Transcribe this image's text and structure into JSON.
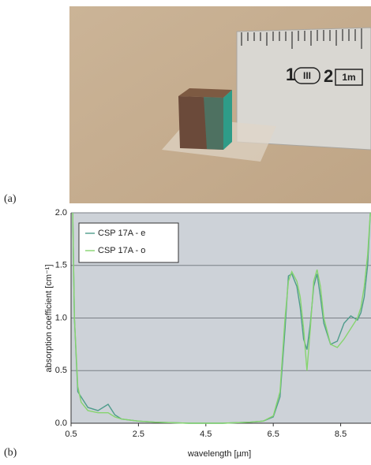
{
  "panel_a": {
    "label": "(a)",
    "ruler_texts": [
      "1",
      "III",
      "2",
      "1m"
    ]
  },
  "chart_data": {
    "type": "line",
    "label": "(b)",
    "x_label": "wavelength [µm]",
    "y_label": "absorption coefficient [cm⁻¹]",
    "x": [
      0.55,
      0.6,
      0.7,
      0.8,
      1.0,
      1.3,
      1.6,
      1.8,
      2.0,
      2.5,
      3.0,
      4.0,
      5.0,
      5.8,
      6.2,
      6.5,
      6.7,
      6.85,
      6.95,
      7.05,
      7.2,
      7.3,
      7.4,
      7.5,
      7.6,
      7.7,
      7.8,
      7.9,
      8.0,
      8.2,
      8.4,
      8.6,
      8.8,
      9.0,
      9.1,
      9.2,
      9.3,
      9.38
    ],
    "series": [
      {
        "name": "CSP 17A - e",
        "color": "#4f9c8c",
        "values": [
          2.0,
          1.0,
          0.3,
          0.25,
          0.15,
          0.12,
          0.18,
          0.08,
          0.04,
          0.02,
          0.01,
          0.0,
          0.0,
          0.01,
          0.02,
          0.06,
          0.25,
          0.9,
          1.4,
          1.42,
          1.3,
          1.1,
          0.8,
          0.7,
          0.95,
          1.3,
          1.42,
          1.2,
          0.95,
          0.75,
          0.78,
          0.95,
          1.02,
          0.98,
          1.05,
          1.2,
          1.5,
          2.0
        ]
      },
      {
        "name": "CSP 17A - o",
        "color": "#86d46e",
        "values": [
          2.0,
          1.0,
          0.35,
          0.2,
          0.12,
          0.1,
          0.1,
          0.06,
          0.04,
          0.02,
          0.01,
          0.0,
          0.0,
          0.01,
          0.02,
          0.07,
          0.3,
          1.0,
          1.35,
          1.44,
          1.35,
          1.2,
          0.9,
          0.5,
          0.9,
          1.35,
          1.46,
          1.3,
          1.0,
          0.75,
          0.72,
          0.8,
          0.9,
          1.0,
          1.1,
          1.3,
          1.6,
          2.0
        ]
      }
    ],
    "xlim": [
      0.5,
      9.4
    ],
    "xticks": [
      0.5,
      2.5,
      4.5,
      6.5,
      8.5
    ],
    "ylim": [
      0,
      2
    ],
    "yticks": [
      {
        "value": 0,
        "label": "0.0"
      },
      {
        "value": 0.5,
        "label": "0.5"
      },
      {
        "value": 1,
        "label": "1.0"
      },
      {
        "value": 1.5,
        "label": "1.5"
      },
      {
        "value": 2,
        "label": "2.0"
      }
    ],
    "grid": true,
    "legend": "upper-left",
    "background": "#cdd2d8"
  }
}
